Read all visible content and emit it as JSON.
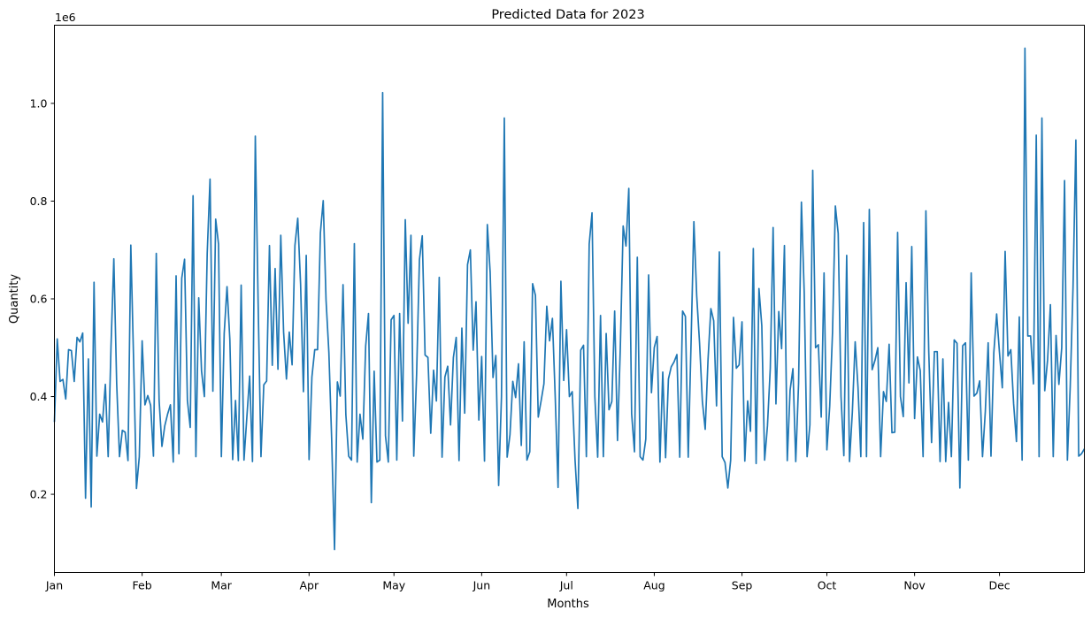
{
  "chart_data": {
    "type": "line",
    "title": "Predicted Data for 2023",
    "xlabel": "Months",
    "ylabel": "Quantity",
    "y_offset_label": "1e6",
    "x_tick_labels": [
      "Jan",
      "Feb",
      "Mar",
      "Apr",
      "May",
      "Jun",
      "Jul",
      "Aug",
      "Sep",
      "Oct",
      "Nov",
      "Dec"
    ],
    "y_tick_labels": [
      "0.2",
      "0.4",
      "0.6",
      "0.8",
      "1.0"
    ],
    "ylim": [
      40000,
      1160000
    ],
    "xlim": [
      "2023-01-01",
      "2023-12-31"
    ],
    "grid": false,
    "line_color": "#1f77b4",
    "series": [
      {
        "values": [
          348000,
          518000,
          431000,
          435000,
          395000,
          496000,
          494000,
          431000,
          521000,
          512000,
          530000,
          192000,
          477000,
          174000,
          634000,
          278000,
          364000,
          348000,
          425000,
          277000,
          503000,
          682000,
          427000,
          277000,
          331000,
          327000,
          269000,
          710000,
          470000,
          212000,
          277000,
          514000,
          383000,
          402000,
          382000,
          278000,
          693000,
          392000,
          298000,
          340000,
          364000,
          383000,
          266000,
          647000,
          283000,
          642000,
          681000,
          392000,
          337000,
          811000,
          277000,
          602000,
          452000,
          400000,
          693000,
          845000,
          411000,
          763000,
          712000,
          277000,
          529000,
          625000,
          517000,
          271000,
          392000,
          269000,
          628000,
          270000,
          357000,
          442000,
          267000,
          933000,
          591000,
          277000,
          424000,
          432000,
          709000,
          464000,
          662000,
          456000,
          730000,
          532000,
          436000,
          532000,
          465000,
          709000,
          765000,
          630000,
          410000,
          689000,
          271000,
          440000,
          496000,
          496000,
          735000,
          801000,
          597000,
          490000,
          310000,
          87000,
          430000,
          401000,
          629000,
          363000,
          278000,
          270000,
          713000,
          266000,
          364000,
          313000,
          503000,
          570000,
          183000,
          452000,
          266000,
          270000,
          1022000,
          320000,
          266000,
          557000,
          566000,
          270000,
          570000,
          350000,
          762000,
          550000,
          730000,
          278000,
          445000,
          680000,
          729000,
          485000,
          480000,
          325000,
          454000,
          391000,
          644000,
          276000,
          440000,
          462000,
          342000,
          480000,
          521000,
          269000,
          540000,
          366000,
          670000,
          700000,
          495000,
          594000,
          352000,
          482000,
          268000,
          752000,
          654000,
          439000,
          484000,
          218000,
          400000,
          970000,
          276000,
          322000,
          431000,
          398000,
          467000,
          300000,
          512000,
          270000,
          287000,
          631000,
          607000,
          358000,
          391000,
          426000,
          585000,
          514000,
          560000,
          398000,
          214000,
          636000,
          433000,
          537000,
          400000,
          410000,
          270000,
          171000,
          495000,
          505000,
          277000,
          712000,
          776000,
          400000,
          276000,
          566000,
          277000,
          529000,
          373000,
          390000,
          575000,
          310000,
          500000,
          749000,
          708000,
          826000,
          365000,
          287000,
          685000,
          277000,
          270000,
          313000,
          649000,
          408000,
          500000,
          523000,
          266000,
          450000,
          275000,
          436000,
          461000,
          471000,
          486000,
          276000,
          575000,
          564000,
          276000,
          510000,
          758000,
          606000,
          510000,
          390000,
          333000,
          476000,
          580000,
          555000,
          381000,
          696000,
          277000,
          265000,
          213000,
          270000,
          562000,
          458000,
          465000,
          553000,
          268000,
          391000,
          329000,
          703000,
          263000,
          621000,
          545000,
          270000,
          340000,
          458000,
          746000,
          385000,
          574000,
          498000,
          709000,
          269000,
          413000,
          457000,
          267000,
          427000,
          798000,
          611000,
          277000,
          342000,
          863000,
          500000,
          506000,
          358000,
          653000,
          291000,
          380000,
          532000,
          790000,
          734000,
          400000,
          279000,
          689000,
          267000,
          368000,
          512000,
          419000,
          277000,
          756000,
          277000,
          783000,
          455000,
          474000,
          500000,
          277000,
          410000,
          390000,
          507000,
          326000,
          327000,
          736000,
          400000,
          359000,
          633000,
          428000,
          707000,
          355000,
          481000,
          453000,
          277000,
          780000,
          493000,
          306000,
          492000,
          492000,
          267000,
          477000,
          267000,
          388000,
          277000,
          516000,
          509000,
          213000,
          504000,
          510000,
          270000,
          653000,
          401000,
          407000,
          432000,
          277000,
          370000,
          510000,
          278000,
          490000,
          569000,
          490000,
          418000,
          697000,
          483000,
          496000,
          385000,
          308000,
          563000,
          270000,
          1113000,
          524000,
          524000,
          426000,
          935000,
          277000,
          970000,
          412000,
          475000,
          588000,
          277000,
          525000,
          425000,
          500000,
          842000,
          270000,
          420000,
          625000,
          925000,
          278000,
          283000,
          293000
        ]
      }
    ]
  }
}
